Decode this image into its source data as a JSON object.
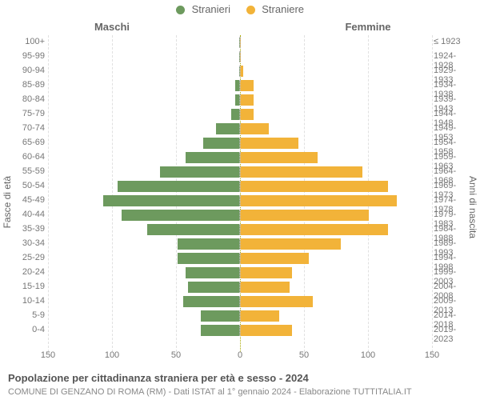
{
  "chart": {
    "type": "population-pyramid",
    "legend": {
      "male": {
        "label": "Stranieri",
        "color": "#6d9a5e"
      },
      "female": {
        "label": "Straniere",
        "color": "#f2b339"
      }
    },
    "columns": {
      "left": "Maschi",
      "right": "Femmine"
    },
    "y_axis_left_label": "Fasce di età",
    "y_axis_right_label": "Anni di nascita",
    "x_axis": {
      "min": 0,
      "max": 150,
      "ticks": [
        0,
        50,
        100,
        150
      ]
    },
    "background_color": "#ffffff",
    "grid_color": "#e0e0e0",
    "tick_font_size": 11,
    "label_color": "#777777",
    "male_color": "#6d9a5e",
    "female_color": "#f2b339",
    "ages": [
      {
        "range": "100+",
        "birth": "≤ 1923",
        "m": 0,
        "f": 0
      },
      {
        "range": "95-99",
        "birth": "1924-1928",
        "m": 0,
        "f": 0
      },
      {
        "range": "90-94",
        "birth": "1929-1933",
        "m": 0,
        "f": 2
      },
      {
        "range": "85-89",
        "birth": "1934-1938",
        "m": 3,
        "f": 10
      },
      {
        "range": "80-84",
        "birth": "1939-1943",
        "m": 3,
        "f": 10
      },
      {
        "range": "75-79",
        "birth": "1944-1948",
        "m": 6,
        "f": 10
      },
      {
        "range": "70-74",
        "birth": "1949-1953",
        "m": 18,
        "f": 22
      },
      {
        "range": "65-69",
        "birth": "1954-1958",
        "m": 28,
        "f": 45
      },
      {
        "range": "60-64",
        "birth": "1959-1963",
        "m": 42,
        "f": 60
      },
      {
        "range": "55-59",
        "birth": "1964-1968",
        "m": 62,
        "f": 95
      },
      {
        "range": "50-54",
        "birth": "1969-1973",
        "m": 95,
        "f": 115
      },
      {
        "range": "45-49",
        "birth": "1974-1978",
        "m": 106,
        "f": 122
      },
      {
        "range": "40-44",
        "birth": "1979-1983",
        "m": 92,
        "f": 100
      },
      {
        "range": "35-39",
        "birth": "1984-1988",
        "m": 72,
        "f": 115
      },
      {
        "range": "30-34",
        "birth": "1989-1993",
        "m": 48,
        "f": 78
      },
      {
        "range": "25-29",
        "birth": "1994-1998",
        "m": 48,
        "f": 53
      },
      {
        "range": "20-24",
        "birth": "1999-2003",
        "m": 42,
        "f": 40
      },
      {
        "range": "15-19",
        "birth": "2004-2008",
        "m": 40,
        "f": 38
      },
      {
        "range": "10-14",
        "birth": "2009-2013",
        "m": 44,
        "f": 56
      },
      {
        "range": "5-9",
        "birth": "2014-2018",
        "m": 30,
        "f": 30
      },
      {
        "range": "0-4",
        "birth": "2019-2023",
        "m": 30,
        "f": 40
      }
    ],
    "footer_title": "Popolazione per cittadinanza straniera per età e sesso - 2024",
    "footer_sub": "COMUNE DI GENZANO DI ROMA (RM) - Dati ISTAT al 1° gennaio 2024 - Elaborazione TUTTITALIA.IT"
  }
}
